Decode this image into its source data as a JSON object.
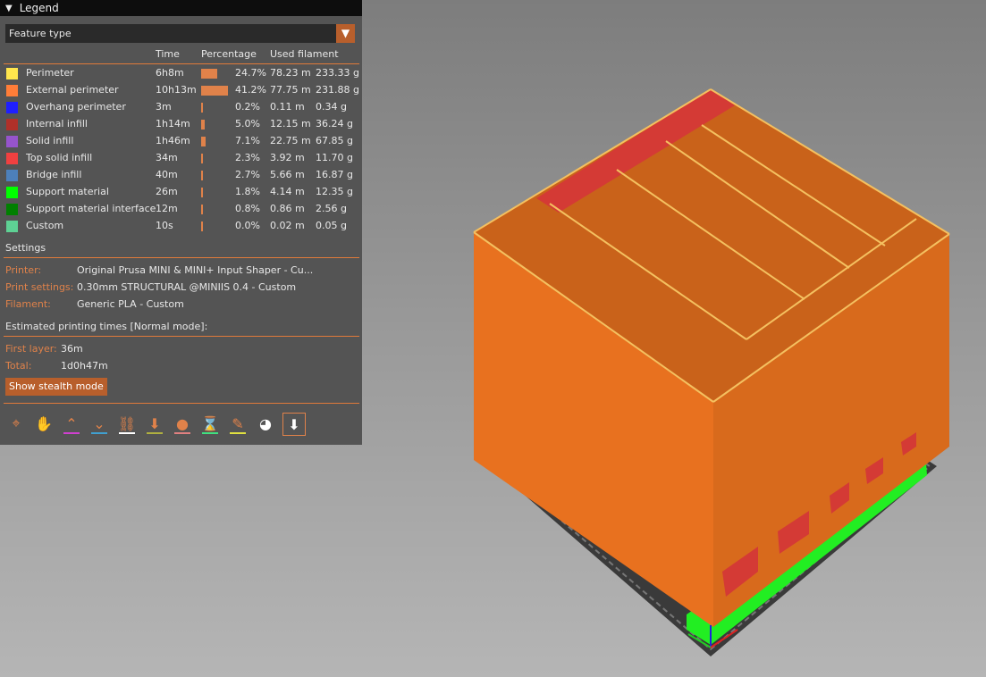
{
  "legend": {
    "title": "Legend",
    "view_type": "Feature type",
    "columns": [
      "Time",
      "Percentage",
      "Used filament"
    ],
    "items": [
      {
        "label": "Perimeter",
        "color": "#FFE64D",
        "time": "6h8m",
        "percentage": "24.7%",
        "pct": 24.7,
        "length": "78.23 m",
        "weight": "233.33 g"
      },
      {
        "label": "External perimeter",
        "color": "#FF7D38",
        "time": "10h13m",
        "percentage": "41.2%",
        "pct": 41.2,
        "length": "77.75 m",
        "weight": "231.88 g"
      },
      {
        "label": "Overhang perimeter",
        "color": "#1F1FFF",
        "time": "3m",
        "percentage": "0.2%",
        "pct": 0.2,
        "length": "0.11 m",
        "weight": "0.34 g"
      },
      {
        "label": "Internal infill",
        "color": "#B03029",
        "time": "1h14m",
        "percentage": "5.0%",
        "pct": 5.0,
        "length": "12.15 m",
        "weight": "36.24 g"
      },
      {
        "label": "Solid infill",
        "color": "#9654CC",
        "time": "1h46m",
        "percentage": "7.1%",
        "pct": 7.1,
        "length": "22.75 m",
        "weight": "67.85 g"
      },
      {
        "label": "Top solid infill",
        "color": "#F04040",
        "time": "34m",
        "percentage": "2.3%",
        "pct": 2.3,
        "length": "3.92 m",
        "weight": "11.70 g"
      },
      {
        "label": "Bridge infill",
        "color": "#4D80BA",
        "time": "40m",
        "percentage": "2.7%",
        "pct": 2.7,
        "length": "5.66 m",
        "weight": "16.87 g"
      },
      {
        "label": "Support material",
        "color": "#00FF00",
        "time": "26m",
        "percentage": "1.8%",
        "pct": 1.8,
        "length": "4.14 m",
        "weight": "12.35 g"
      },
      {
        "label": "Support material interface",
        "color": "#008000",
        "time": "12m",
        "percentage": "0.8%",
        "pct": 0.8,
        "length": "0.86 m",
        "weight": "2.56 g"
      },
      {
        "label": "Custom",
        "color": "#5ED194",
        "time": "10s",
        "percentage": "0.0%",
        "pct": 0.0,
        "length": "0.02 m",
        "weight": "0.05 g"
      }
    ],
    "settings": {
      "title": "Settings",
      "printer_label": "Printer:",
      "printer": "Original Prusa MINI & MINI+ Input Shaper - Cu...",
      "print_settings_label": "Print settings:",
      "print_settings": "0.30mm STRUCTURAL @MINIIS 0.4 - Custom",
      "filament_label": "Filament:",
      "filament": "Generic PLA - Custom"
    },
    "times": {
      "title": "Estimated printing times [Normal mode]:",
      "first_layer_label": "First layer:",
      "first_layer": "36m",
      "total_label": "Total:",
      "total": "1d0h47m",
      "stealth_button": "Show stealth mode"
    },
    "toolbar_icons": [
      {
        "name": "travel-icon",
        "glyph": "⌖",
        "underline": ""
      },
      {
        "name": "wipe-icon",
        "glyph": "✋",
        "underline": ""
      },
      {
        "name": "retractions-icon",
        "glyph": "⌃",
        "underline": "#d040d0"
      },
      {
        "name": "deretractions-icon",
        "glyph": "⌄",
        "underline": "#40a0d0"
      },
      {
        "name": "seams-icon",
        "glyph": "⛓",
        "underline": "#ffffff"
      },
      {
        "name": "tool-changes-icon",
        "glyph": "⬇",
        "underline": "#b0b040"
      },
      {
        "name": "color-changes-icon",
        "glyph": "●",
        "underline": "#e08080"
      },
      {
        "name": "pause-icon",
        "glyph": "⌛",
        "underline": "#40e080"
      },
      {
        "name": "custom-gcode-icon",
        "glyph": "✎",
        "underline": "#e0e040"
      },
      {
        "name": "center-of-gravity-icon",
        "glyph": "◕",
        "underline": ""
      },
      {
        "name": "tool-marker-icon",
        "glyph": "⬇",
        "underline": ""
      }
    ]
  }
}
